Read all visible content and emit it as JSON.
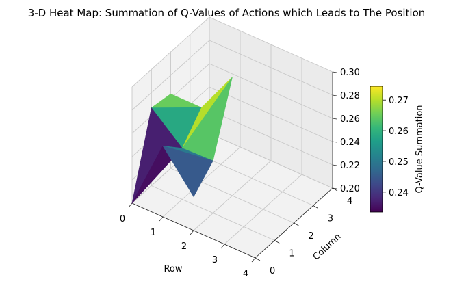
{
  "chart_data": {
    "type": "surface-3d",
    "title": "3-D Heat Map: Summation of Q-Values of Actions which Leads to The Position",
    "xlabel": "Row",
    "ylabel": "Column",
    "x_ticks": [
      "0",
      "1",
      "2",
      "3",
      "4"
    ],
    "y_ticks": [
      "0",
      "1",
      "2",
      "3",
      "4"
    ],
    "z_ticks": [
      "0.20",
      "0.22",
      "0.24",
      "0.26",
      "0.28",
      "0.30"
    ],
    "zlim": [
      0.2,
      0.3
    ],
    "grid": true,
    "colormap": "viridis",
    "colorbar": {
      "label": "Q-Value Summation",
      "range": [
        0.2335,
        0.2745
      ],
      "ticks": [
        "0.24",
        "0.25",
        "0.26",
        "0.27"
      ]
    },
    "surface": {
      "x": [
        0,
        1,
        2
      ],
      "y": [
        0,
        1,
        2
      ],
      "z": [
        [
          0.2,
          0.267,
          0.264
        ],
        [
          0.261,
          0.244,
          0.264
        ],
        [
          0.229,
          0.245,
          0.302
        ]
      ]
    }
  }
}
